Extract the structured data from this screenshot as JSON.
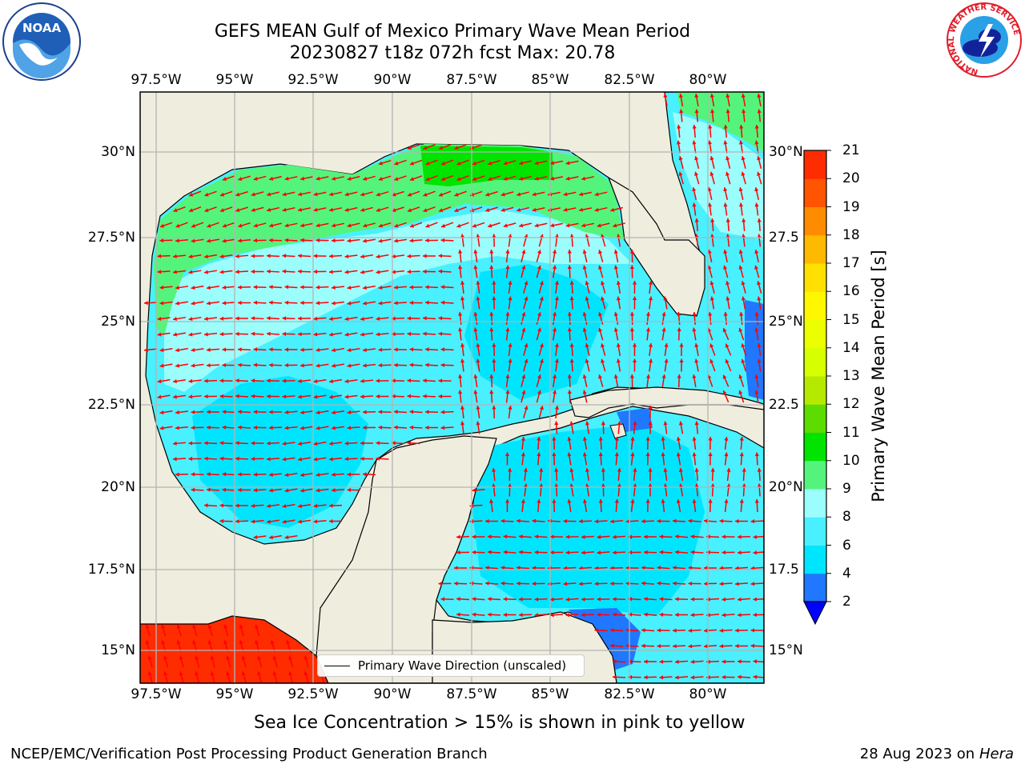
{
  "title": {
    "line1": "GEFS MEAN Gulf of Mexico Primary Wave Mean Period",
    "line2": "20230827 t18z 072h fcst   Max: 20.78"
  },
  "axes": {
    "lon_labels": [
      "97.5°W",
      "95°W",
      "92.5°W",
      "90°W",
      "87.5°W",
      "85°W",
      "82.5°W",
      "80°W"
    ],
    "lat_labels_left": [
      "30°N",
      "27.5°N",
      "25°N",
      "22.5°N",
      "20°N",
      "17.5°N",
      "15°N"
    ],
    "lat_labels_right": [
      "30°N",
      "27.5",
      "25°N",
      "22.5",
      "20°N",
      "17.5",
      "15°N"
    ]
  },
  "colorbar": {
    "label": "Primary Wave Mean Period [s]",
    "ticks": [
      "2",
      "4",
      "6",
      "8",
      "9",
      "10",
      "11",
      "12",
      "13",
      "14",
      "15",
      "16",
      "17",
      "18",
      "19",
      "20",
      "21"
    ],
    "colors": [
      "#1f78ff",
      "#00e5ff",
      "#49f0ff",
      "#9cfdfd",
      "#54f47c",
      "#00e400",
      "#5cdc00",
      "#b5ea00",
      "#d6ff00",
      "#ecff00",
      "#fff700",
      "#ffe000",
      "#ffb900",
      "#ff8c00",
      "#ff5400",
      "#ff2c00"
    ],
    "below_color": "#0000ff",
    "above_color": "#ff0000"
  },
  "legend": {
    "label": "Primary Wave Direction (unscaled)"
  },
  "subtitle": "Sea Ice Concentration > 15% is shown in pink to yellow",
  "footer": {
    "left": "NCEP/EMC/Verification Post Processing Product Generation Branch",
    "right_prefix": "28 Aug 2023 on",
    "right_machine": "Hera"
  },
  "logos": {
    "noaa_text": "NOAA",
    "nws_ring": "NATIONAL WEATHER SERVICE"
  },
  "colors": {
    "land": "#efedde",
    "ocean_main": "#49f0ff",
    "ocean_light": "#9cfdfd",
    "ocean_cyan": "#00e5ff",
    "ocean_deep": "#1f78ff",
    "band_green": "#54f47c",
    "band_bright_green": "#00e400",
    "pacific_red": "#ff2c00",
    "arrow": "#ff0000",
    "gridline": "#b4b4b4"
  }
}
